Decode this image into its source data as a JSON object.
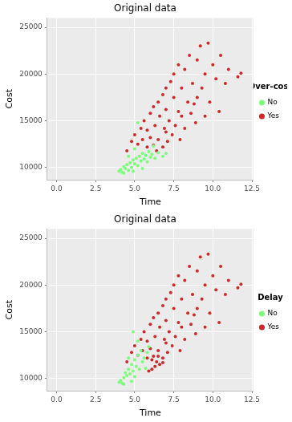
{
  "chart_data": [
    {
      "type": "scatter",
      "title": "Original data",
      "x_label": "Time",
      "y_label": "Cost",
      "legend": "right",
      "legend_title": "Over-cost",
      "grid": true,
      "xlim": [
        -0.6,
        12.6
      ],
      "ylim": [
        8700,
        26000
      ],
      "xticks": [
        {
          "value": 0,
          "label": "0.0"
        },
        {
          "value": 2.5,
          "label": "2.5"
        },
        {
          "value": 5,
          "label": "5.0"
        },
        {
          "value": 7.5,
          "label": "7.5"
        },
        {
          "value": 10,
          "label": "10.0"
        },
        {
          "value": 12.5,
          "label": "12.5"
        }
      ],
      "yticks": [
        10000,
        15000,
        20000,
        25000
      ],
      "series": [
        {
          "name": "No",
          "color": "#7dfc7d",
          "x": [
            4.0,
            4.1,
            4.2,
            4.3,
            4.4,
            4.5,
            4.6,
            4.7,
            4.8,
            4.9,
            5.0,
            5.1,
            5.2,
            5.3,
            5.4,
            5.5,
            5.6,
            5.7,
            5.8,
            5.9,
            6.0,
            6.1,
            6.3,
            6.5,
            6.8,
            4.6,
            4.3,
            5.0,
            5.2,
            6.2,
            7.0,
            5.5,
            4.9
          ],
          "values": [
            9600,
            9800,
            9500,
            10100,
            9900,
            10300,
            9700,
            10500,
            10000,
            10800,
            10400,
            11000,
            10200,
            11200,
            10700,
            11500,
            10900,
            11300,
            10600,
            11700,
            11100,
            11400,
            11000,
            11600,
            11200,
            11200,
            9400,
            12000,
            14800,
            12300,
            11500,
            9900,
            9600
          ]
        },
        {
          "name": "Yes",
          "color": "#cc2a2a",
          "x": [
            4.5,
            4.8,
            5.0,
            5.2,
            5.4,
            5.5,
            5.6,
            5.8,
            5.8,
            6.0,
            6.0,
            6.2,
            6.2,
            6.3,
            6.5,
            6.5,
            6.6,
            6.8,
            6.8,
            6.9,
            7.0,
            7.0,
            7.1,
            7.2,
            7.3,
            7.4,
            7.5,
            7.5,
            7.6,
            7.8,
            7.8,
            7.9,
            8.0,
            8.0,
            8.2,
            8.2,
            8.4,
            8.5,
            8.6,
            8.7,
            8.8,
            9.0,
            9.0,
            9.2,
            9.3,
            9.5,
            9.7,
            9.8,
            10.0,
            10.2,
            10.5,
            10.8,
            11.0,
            11.6,
            11.8,
            10.4,
            9.5,
            8.9,
            7.0,
            6.4
          ],
          "values": [
            11800,
            12800,
            13500,
            12500,
            14200,
            13000,
            15000,
            12200,
            14000,
            15800,
            13200,
            12400,
            16500,
            14500,
            17000,
            13000,
            15500,
            12200,
            17800,
            14200,
            16200,
            18500,
            12800,
            15000,
            19200,
            13500,
            17500,
            20000,
            14500,
            16000,
            21000,
            13000,
            18500,
            15500,
            20500,
            14200,
            17000,
            22000,
            15800,
            19000,
            16800,
            21500,
            17500,
            23000,
            18500,
            20000,
            23300,
            17000,
            21000,
            19500,
            22000,
            19000,
            20500,
            19700,
            20100,
            16000,
            15500,
            14800,
            13800,
            11800
          ]
        }
      ]
    },
    {
      "type": "scatter",
      "title": "Original data",
      "x_label": "Time",
      "y_label": "Cost",
      "legend": "right",
      "legend_title": "Delay",
      "grid": true,
      "xlim": [
        -0.6,
        12.6
      ],
      "ylim": [
        8700,
        26000
      ],
      "xticks": [
        {
          "value": 0,
          "label": "0.0"
        },
        {
          "value": 2.5,
          "label": "2.5"
        },
        {
          "value": 5,
          "label": "5.0"
        },
        {
          "value": 7.5,
          "label": "7.5"
        },
        {
          "value": 10,
          "label": "10.0"
        },
        {
          "value": 12.5,
          "label": "12.5"
        }
      ],
      "yticks": [
        10000,
        15000,
        20000,
        25000
      ],
      "series": [
        {
          "name": "No",
          "color": "#7dfc7d",
          "x": [
            4.0,
            4.1,
            4.2,
            4.3,
            4.4,
            4.5,
            4.6,
            4.7,
            4.8,
            4.9,
            5.0,
            5.0,
            5.1,
            5.2,
            5.3,
            5.4,
            5.5,
            5.6,
            4.9,
            5.2,
            4.6,
            5.8,
            5.7,
            4.3,
            5.9,
            4.8
          ],
          "values": [
            9600,
            9800,
            9500,
            10100,
            10600,
            10300,
            11000,
            10500,
            11500,
            10800,
            12000,
            10200,
            11300,
            12500,
            11000,
            13000,
            11800,
            12200,
            15000,
            14000,
            12200,
            12800,
            11100,
            9400,
            13400,
            9700
          ]
        },
        {
          "name": "Yes",
          "color": "#cc2a2a",
          "x": [
            4.5,
            4.8,
            5.0,
            5.2,
            5.4,
            5.5,
            5.6,
            5.8,
            5.8,
            6.0,
            6.0,
            6.2,
            6.2,
            6.3,
            6.5,
            6.5,
            6.6,
            6.8,
            6.8,
            6.9,
            7.0,
            7.0,
            7.1,
            7.2,
            7.3,
            7.4,
            7.5,
            7.5,
            7.6,
            7.8,
            7.8,
            7.9,
            8.0,
            8.0,
            8.2,
            8.2,
            8.4,
            8.5,
            8.6,
            8.7,
            8.8,
            9.0,
            9.0,
            9.2,
            9.3,
            9.5,
            9.7,
            9.8,
            10.0,
            10.2,
            10.5,
            10.8,
            11.0,
            11.6,
            11.8,
            10.4,
            9.5,
            8.9,
            7.0,
            6.4,
            5.9,
            6.1,
            6.3,
            6.6,
            6.8,
            6.1,
            6.5
          ],
          "values": [
            11800,
            12800,
            13500,
            12500,
            14200,
            13000,
            15000,
            12200,
            14000,
            15800,
            13200,
            12400,
            16500,
            14500,
            17000,
            13000,
            15500,
            12200,
            17800,
            14200,
            16200,
            18500,
            12800,
            15000,
            19200,
            13500,
            17500,
            20000,
            14500,
            16000,
            21000,
            13000,
            18500,
            15500,
            20500,
            14200,
            17000,
            22000,
            15800,
            19000,
            16800,
            21500,
            17500,
            23000,
            18500,
            20000,
            23300,
            17000,
            21000,
            19500,
            22000,
            19000,
            20500,
            19700,
            20100,
            16000,
            15500,
            14800,
            13800,
            11800,
            10800,
            11000,
            11300,
            11500,
            11700,
            12000,
            12400
          ]
        }
      ]
    }
  ]
}
